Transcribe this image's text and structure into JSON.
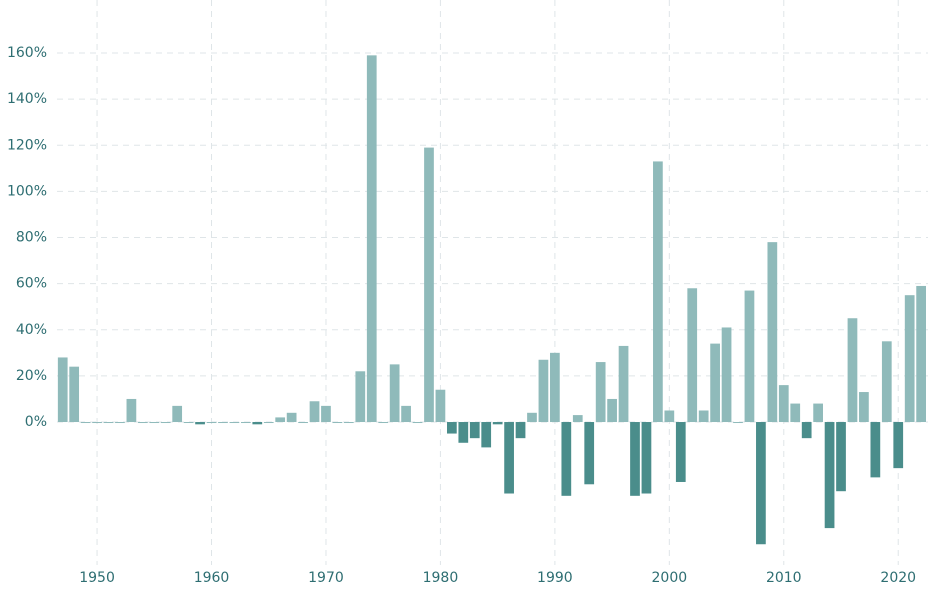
{
  "chart_data": {
    "type": "bar",
    "x": [
      1947,
      1948,
      1949,
      1950,
      1951,
      1952,
      1953,
      1954,
      1955,
      1956,
      1957,
      1958,
      1959,
      1960,
      1961,
      1962,
      1963,
      1964,
      1965,
      1966,
      1967,
      1968,
      1969,
      1970,
      1971,
      1972,
      1973,
      1974,
      1975,
      1976,
      1977,
      1978,
      1979,
      1980,
      1981,
      1982,
      1983,
      1984,
      1985,
      1986,
      1987,
      1988,
      1989,
      1990,
      1991,
      1992,
      1993,
      1994,
      1995,
      1996,
      1997,
      1998,
      1999,
      2000,
      2001,
      2002,
      2003,
      2004,
      2005,
      2006,
      2007,
      2008,
      2009,
      2010,
      2011,
      2012,
      2013,
      2014,
      2015,
      2016,
      2017,
      2018,
      2019,
      2020,
      2021,
      2022
    ],
    "values": [
      28,
      24,
      0,
      0,
      0,
      0,
      10,
      0,
      0,
      0,
      7,
      0,
      -1,
      0,
      0,
      0,
      0,
      -1,
      0,
      2,
      4,
      0,
      9,
      7,
      0,
      0,
      22,
      159,
      0,
      25,
      7,
      0,
      119,
      14,
      -5,
      -9,
      -7,
      -11,
      -1,
      -31,
      -7,
      4,
      27,
      30,
      -32,
      3,
      -27,
      26,
      10,
      33,
      -32,
      -31,
      113,
      5,
      -26,
      58,
      5,
      34,
      41,
      0,
      57,
      -53,
      78,
      16,
      8,
      -7,
      8,
      -46,
      -30,
      45,
      13,
      -24,
      35,
      -20,
      55,
      59
    ],
    "positive_color": "#8fbaba",
    "negative_color": "#4a8d8b",
    "xlim": [
      1946.5,
      2022.6
    ],
    "xticks": [
      1950,
      1960,
      1970,
      1980,
      1990,
      2000,
      2010,
      2020
    ],
    "ylim": [
      -62,
      183
    ],
    "yticks": [
      {
        "value": 0,
        "label": "0%"
      },
      {
        "value": 20,
        "label": "20%"
      },
      {
        "value": 40,
        "label": "40%"
      },
      {
        "value": 60,
        "label": "60%"
      },
      {
        "value": 80,
        "label": "80%"
      },
      {
        "value": 100,
        "label": "100%"
      },
      {
        "value": 120,
        "label": "120%"
      },
      {
        "value": 140,
        "label": "140%"
      },
      {
        "value": 160,
        "label": "160%"
      }
    ],
    "grid": true
  }
}
